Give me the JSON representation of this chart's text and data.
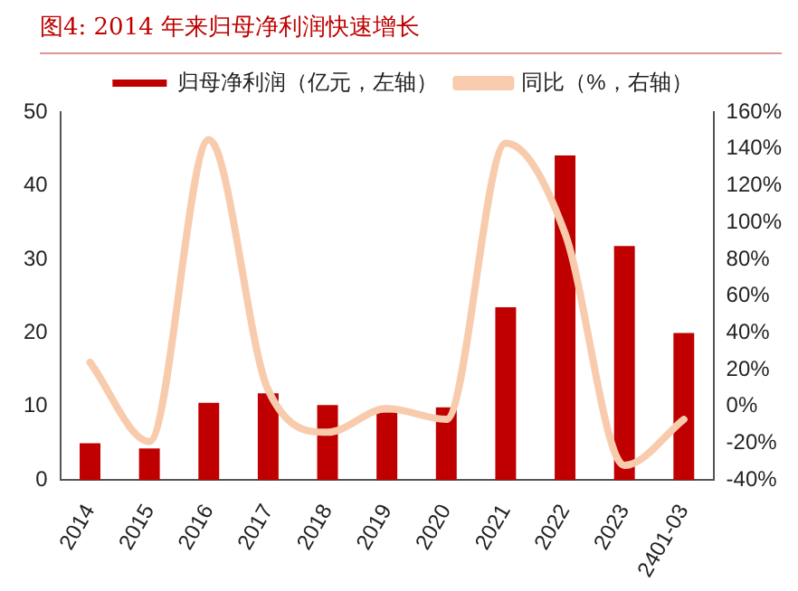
{
  "chart_data": {
    "type": "bar",
    "title": "图4:  2014 年来归母净利润快速增长",
    "categories": [
      "2014",
      "2015",
      "2016",
      "2017",
      "2018",
      "2019",
      "2020",
      "2021",
      "2022",
      "2023",
      "2401-03"
    ],
    "series": [
      {
        "name": "归母净利润（亿元，左轴）",
        "color": "#c00000",
        "values": [
          5.0,
          4.3,
          10.5,
          11.8,
          10.2,
          9.2,
          9.9,
          23.5,
          44.1,
          31.8,
          20.0
        ]
      },
      {
        "name": "同比（%，右轴）",
        "type": "line",
        "axis": "y2",
        "color": "#f8cbad",
        "values": [
          24,
          -19,
          145,
          9,
          -14,
          -1,
          -7,
          143,
          94,
          -32,
          -7
        ]
      }
    ],
    "ylim": [
      0,
      50
    ],
    "yticks": [
      0,
      10,
      20,
      30,
      40,
      50
    ],
    "y2lim": [
      -40,
      160
    ],
    "y2ticks": [
      {
        "value": -40,
        "label": "-40%"
      },
      {
        "value": -20,
        "label": "-20%"
      },
      {
        "value": 0,
        "label": "0%"
      },
      {
        "value": 20,
        "label": "20%"
      },
      {
        "value": 40,
        "label": "40%"
      },
      {
        "value": 60,
        "label": "60%"
      },
      {
        "value": 80,
        "label": "80%"
      },
      {
        "value": 100,
        "label": "100%"
      },
      {
        "value": 120,
        "label": "120%"
      },
      {
        "value": 140,
        "label": "140%"
      },
      {
        "value": 160,
        "label": "160%"
      }
    ],
    "legend": "top",
    "grid": false,
    "marker": "none"
  }
}
